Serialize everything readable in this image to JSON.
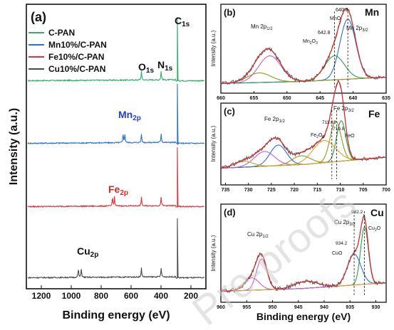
{
  "colors": {
    "c_pan": "#2eaf6a",
    "mn_pan": "#2a73c9",
    "fe_pan": "#e0323a",
    "cu_pan": "#4a4a4a",
    "raw": "#555555",
    "fit": "#d42a2a",
    "bg": "#39b7c6",
    "comp_a": "#c062c9",
    "comp_b": "#8e9a1e",
    "comp_c": "#2f9a4a",
    "comp_d": "#2a6fd6",
    "comp_e": "#e0a21e",
    "guide": "#222222"
  },
  "watermark": "Pre-proofs",
  "chart_data": [
    {
      "id": "panel-a",
      "type": "line",
      "label": "(a)",
      "xlabel": "Binding energy (eV)",
      "ylabel": "Intensity (a.u.)",
      "xlim": [
        1300,
        100
      ],
      "xticks": [
        1200,
        1000,
        800,
        600,
        400,
        200
      ],
      "y_ticks": "none",
      "legend": {
        "position": "top-left",
        "entries": [
          "C-PAN",
          "Mn10%/C-PAN",
          "Fe10%/C-PAN",
          "Cu10%/C-PAN"
        ]
      },
      "annotations": [
        "C1s",
        "O1s",
        "N1s",
        "Mn2p",
        "Fe2p",
        "Cu2p"
      ],
      "series": [
        {
          "name": "C-PAN",
          "peaks_eV": [
            284.8,
            399.0,
            531.0
          ],
          "baseline_norm": 0.05,
          "c1s_norm": 1.0
        },
        {
          "name": "Mn10%/C-PAN",
          "peaks_eV": [
            284.8,
            399.0,
            531.0,
            641.0,
            653.0
          ],
          "baseline_norm": 0.05,
          "c1s_norm": 1.0
        },
        {
          "name": "Fe10%/C-PAN",
          "peaks_eV": [
            284.8,
            399.0,
            531.0,
            711.0,
            724.5
          ],
          "baseline_norm": 0.05,
          "c1s_norm": 1.0
        },
        {
          "name": "Cu10%/C-PAN",
          "peaks_eV": [
            284.8,
            399.0,
            531.0,
            932.5,
            952.4
          ],
          "baseline_norm": 0.05,
          "c1s_norm": 1.0
        }
      ]
    },
    {
      "id": "panel-b",
      "type": "line",
      "label": "(b)",
      "element": "Mn",
      "xlabel": "",
      "ylabel": "Intensity (a.u.)",
      "xlim": [
        660,
        635
      ],
      "xticks": [
        660,
        655,
        650,
        645,
        640,
        635
      ],
      "peak_labels": [
        "Mn 2p1/2",
        "Mn 2p3/2",
        "640.8",
        "642.8",
        "MnO",
        "Mn2O3"
      ],
      "components": [
        {
          "center": 640.8,
          "amp": 0.75,
          "width": 1.2
        },
        {
          "center": 642.8,
          "amp": 0.3,
          "width": 1.5
        },
        {
          "center": 652.6,
          "amp": 0.33,
          "width": 1.7
        },
        {
          "center": 654.2,
          "amp": 0.12,
          "width": 1.8
        }
      ],
      "background": [
        0.05,
        0.18
      ]
    },
    {
      "id": "panel-c",
      "type": "line",
      "label": "(c)",
      "element": "Fe",
      "xlabel": "",
      "ylabel": "Intensity (a.u.)",
      "xlim": [
        736,
        700
      ],
      "xticks": [
        735,
        730,
        725,
        720,
        715,
        710,
        705,
        700
      ],
      "peak_labels": [
        "Fe 2p1/2",
        "Fe 2p3/2",
        "711.83",
        "710.8",
        "Fe2O3",
        "FeO"
      ],
      "components": [
        {
          "center": 709.8,
          "amp": 0.55,
          "width": 1.0
        },
        {
          "center": 711.0,
          "amp": 0.55,
          "width": 1.2
        },
        {
          "center": 713.5,
          "amp": 0.3,
          "width": 2.5
        },
        {
          "center": 718.5,
          "amp": 0.12,
          "width": 2.0
        },
        {
          "center": 723.5,
          "amp": 0.28,
          "width": 1.8
        },
        {
          "center": 726.5,
          "amp": 0.2,
          "width": 2.2
        },
        {
          "center": 731.0,
          "amp": 0.08,
          "width": 2.0
        }
      ],
      "background": [
        0.15,
        0.4
      ]
    },
    {
      "id": "panel-d",
      "type": "line",
      "label": "(d)",
      "element": "Cu",
      "xlabel": "Binding energy (eV)",
      "ylabel": "Intensity (a.u.)",
      "xlim": [
        960,
        928
      ],
      "xticks": [
        960,
        955,
        950,
        945,
        940,
        935,
        930
      ],
      "peak_labels": [
        "Cu 2p1/2",
        "Cu 2p3/2",
        "932.2",
        "934.2",
        "CuO",
        "Cu2O"
      ],
      "components": [
        {
          "center": 932.2,
          "amp": 0.65,
          "width": 0.75
        },
        {
          "center": 934.2,
          "amp": 0.35,
          "width": 1.3
        },
        {
          "center": 952.1,
          "amp": 0.35,
          "width": 1.0
        },
        {
          "center": 954.0,
          "amp": 0.14,
          "width": 1.4
        },
        {
          "center": 943.5,
          "amp": 0.08,
          "width": 2.2
        }
      ],
      "background": [
        0.06,
        0.22
      ]
    }
  ]
}
